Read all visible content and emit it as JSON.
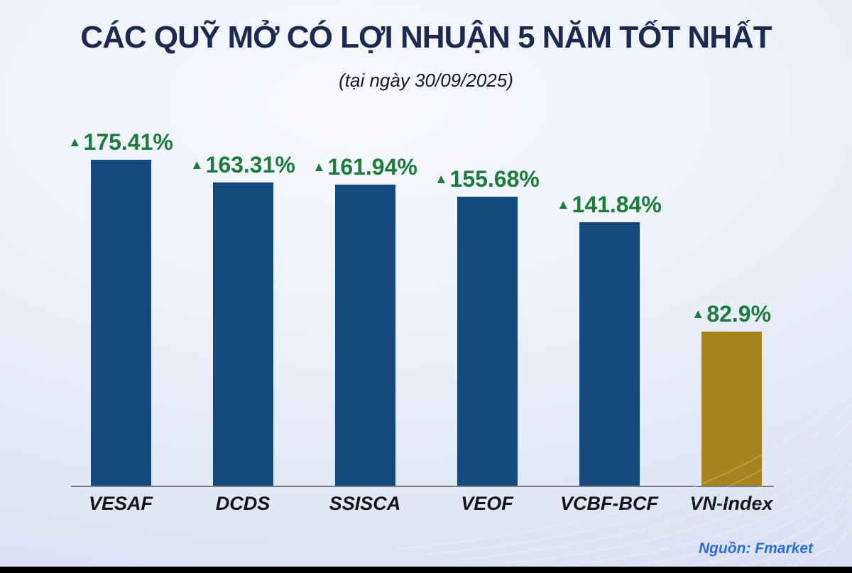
{
  "title": "CÁC QUỸ MỞ CÓ LỢI NHUẬN 5 NĂM TỐT NHẤT",
  "subtitle": "(tại ngày 30/09/2025)",
  "source": "Nguồn: Fmarket",
  "colors": {
    "title_text": "#1B2A50",
    "value_text": "#1C7C3C",
    "axis_line": "#7C7C7C",
    "source_text": "#2E6CD6",
    "bar_navy": "#14497D",
    "bar_gold": "#A6851E"
  },
  "chart_data": {
    "type": "bar",
    "title": "CÁC QUỸ MỞ CÓ LỢI NHUẬN 5 NĂM TỐT NHẤT",
    "subtitle": "(tại ngày 30/09/2025)",
    "categories": [
      "VESAF",
      "DCDS",
      "SSISCA",
      "VEOF",
      "VCBF-BCF",
      "VN-Index"
    ],
    "values": [
      175.41,
      163.31,
      161.94,
      155.68,
      141.84,
      82.9
    ],
    "labels": [
      "175.41%",
      "163.31%",
      "161.94%",
      "155.68%",
      "141.84%",
      "82.9%"
    ],
    "marker": "▲",
    "bar_colors": [
      "#14497D",
      "#14497D",
      "#14497D",
      "#14497D",
      "#14497D",
      "#A6851E"
    ],
    "xlabel": "",
    "ylabel": "",
    "ylim": [
      0,
      186
    ],
    "grid": false,
    "legend": "none",
    "source": "Nguồn: Fmarket"
  }
}
